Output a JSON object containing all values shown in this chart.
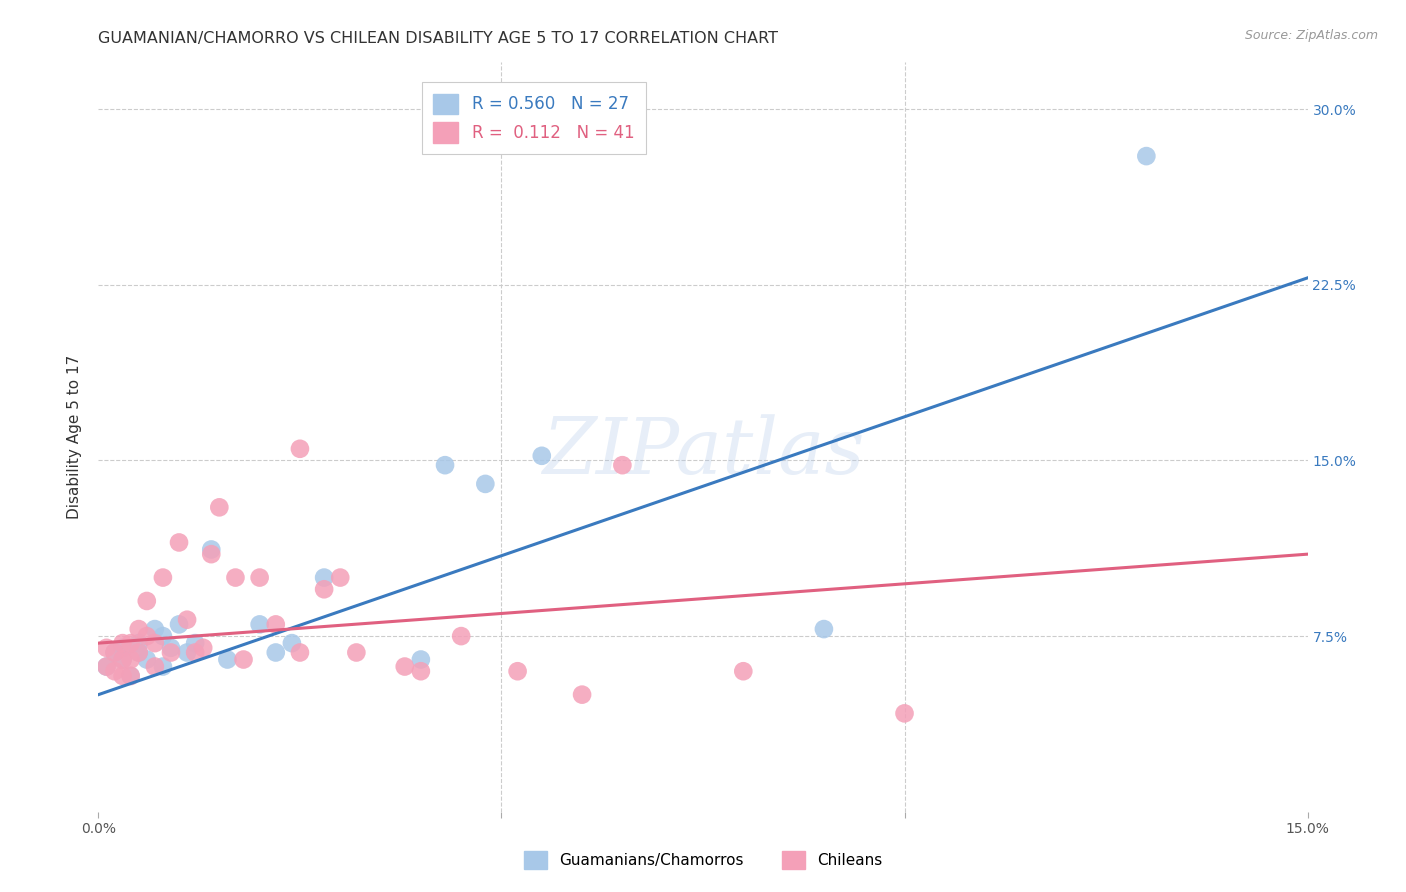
{
  "title": "GUAMANIAN/CHAMORRO VS CHILEAN DISABILITY AGE 5 TO 17 CORRELATION CHART",
  "source": "Source: ZipAtlas.com",
  "ylabel": "Disability Age 5 to 17",
  "xlim": [
    0.0,
    0.15
  ],
  "ylim": [
    0.0,
    0.32
  ],
  "blue_color": "#a8c8e8",
  "pink_color": "#f4a0b8",
  "blue_line_color": "#3a7abf",
  "pink_line_color": "#e06080",
  "legend_blue_label": "R = 0.560   N = 27",
  "legend_pink_label": "R =  0.112   N = 41",
  "watermark": "ZIPatlas",
  "legend_label_blue": "Guamanians/Chamorros",
  "legend_label_pink": "Chileans",
  "blue_points_x": [
    0.001,
    0.002,
    0.003,
    0.003,
    0.004,
    0.005,
    0.005,
    0.006,
    0.007,
    0.008,
    0.008,
    0.009,
    0.01,
    0.011,
    0.012,
    0.014,
    0.016,
    0.02,
    0.022,
    0.024,
    0.028,
    0.04,
    0.043,
    0.048,
    0.055,
    0.09,
    0.13
  ],
  "blue_points_y": [
    0.062,
    0.068,
    0.065,
    0.07,
    0.058,
    0.072,
    0.068,
    0.065,
    0.078,
    0.062,
    0.075,
    0.07,
    0.08,
    0.068,
    0.072,
    0.112,
    0.065,
    0.08,
    0.068,
    0.072,
    0.1,
    0.065,
    0.148,
    0.14,
    0.152,
    0.078,
    0.28
  ],
  "pink_points_x": [
    0.001,
    0.001,
    0.002,
    0.002,
    0.003,
    0.003,
    0.003,
    0.004,
    0.004,
    0.004,
    0.005,
    0.005,
    0.006,
    0.006,
    0.007,
    0.007,
    0.008,
    0.009,
    0.01,
    0.011,
    0.012,
    0.013,
    0.014,
    0.015,
    0.017,
    0.018,
    0.02,
    0.022,
    0.025,
    0.025,
    0.028,
    0.03,
    0.032,
    0.038,
    0.04,
    0.045,
    0.052,
    0.06,
    0.065,
    0.08,
    0.1
  ],
  "pink_points_y": [
    0.062,
    0.07,
    0.06,
    0.068,
    0.058,
    0.065,
    0.072,
    0.058,
    0.065,
    0.072,
    0.068,
    0.078,
    0.075,
    0.09,
    0.062,
    0.072,
    0.1,
    0.068,
    0.115,
    0.082,
    0.068,
    0.07,
    0.11,
    0.13,
    0.1,
    0.065,
    0.1,
    0.08,
    0.155,
    0.068,
    0.095,
    0.1,
    0.068,
    0.062,
    0.06,
    0.075,
    0.06,
    0.05,
    0.148,
    0.06,
    0.042
  ],
  "blue_line_x0": 0.0,
  "blue_line_y0": 0.05,
  "blue_line_x1": 0.15,
  "blue_line_y1": 0.228,
  "pink_line_x0": 0.0,
  "pink_line_y0": 0.072,
  "pink_line_x1": 0.15,
  "pink_line_y1": 0.11,
  "background_color": "#ffffff",
  "grid_color": "#cccccc",
  "title_color": "#333333"
}
